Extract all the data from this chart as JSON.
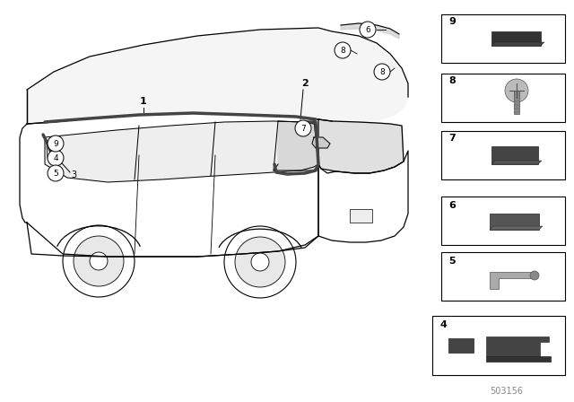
{
  "part_number": "503156",
  "bg": "#ffffff",
  "lc": "#000000",
  "gray": "#aaaaaa",
  "dark": "#333333",
  "panel_boxes": [
    {
      "num": "9",
      "row": 0
    },
    {
      "num": "8",
      "row": 1
    },
    {
      "num": "7",
      "row": 2
    },
    {
      "num": "6",
      "row": 3
    },
    {
      "num": "5",
      "row": 4
    },
    {
      "num": "4",
      "row": 5
    }
  ]
}
